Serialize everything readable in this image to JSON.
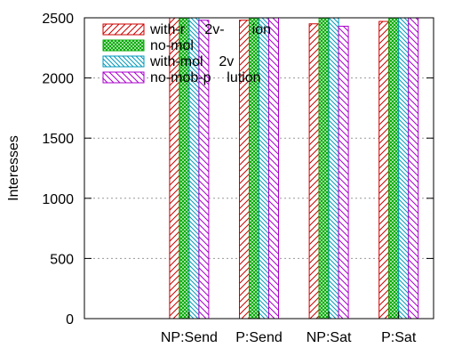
{
  "chart_data": {
    "type": "bar",
    "ylabel": "Interesses",
    "ylim": [
      0,
      2500
    ],
    "yticks": [
      0,
      500,
      1000,
      1500,
      2000,
      2500
    ],
    "grid": "horizontal-dotted",
    "legend_position": "top-left",
    "categories": [
      "",
      "NP:Send",
      "P:Send",
      "NP:Sat",
      "P:Sat"
    ],
    "series": [
      {
        "name": "with-mob-p2v-pollution",
        "legend_text": "with-r     2v-       ion",
        "color": "#cc0000",
        "pattern": "diag-left",
        "values": [
          null,
          2500,
          2480,
          2450,
          2470
        ]
      },
      {
        "name": "no-mob",
        "legend_text": "no-mol",
        "color": "#00aa00",
        "pattern": "cross",
        "values": [
          null,
          2500,
          2500,
          2500,
          2500
        ]
      },
      {
        "name": "with-mob-p2v",
        "legend_text": "with-mol    2v",
        "color": "#0099bb",
        "pattern": "diag-right",
        "values": [
          null,
          2500,
          2500,
          2500,
          2500
        ]
      },
      {
        "name": "no-mob-pollution",
        "legend_text": "no-mob-p    lution",
        "color": "#aa00cc",
        "pattern": "diag-left",
        "values": [
          null,
          2480,
          2500,
          2430,
          2500
        ]
      }
    ]
  }
}
